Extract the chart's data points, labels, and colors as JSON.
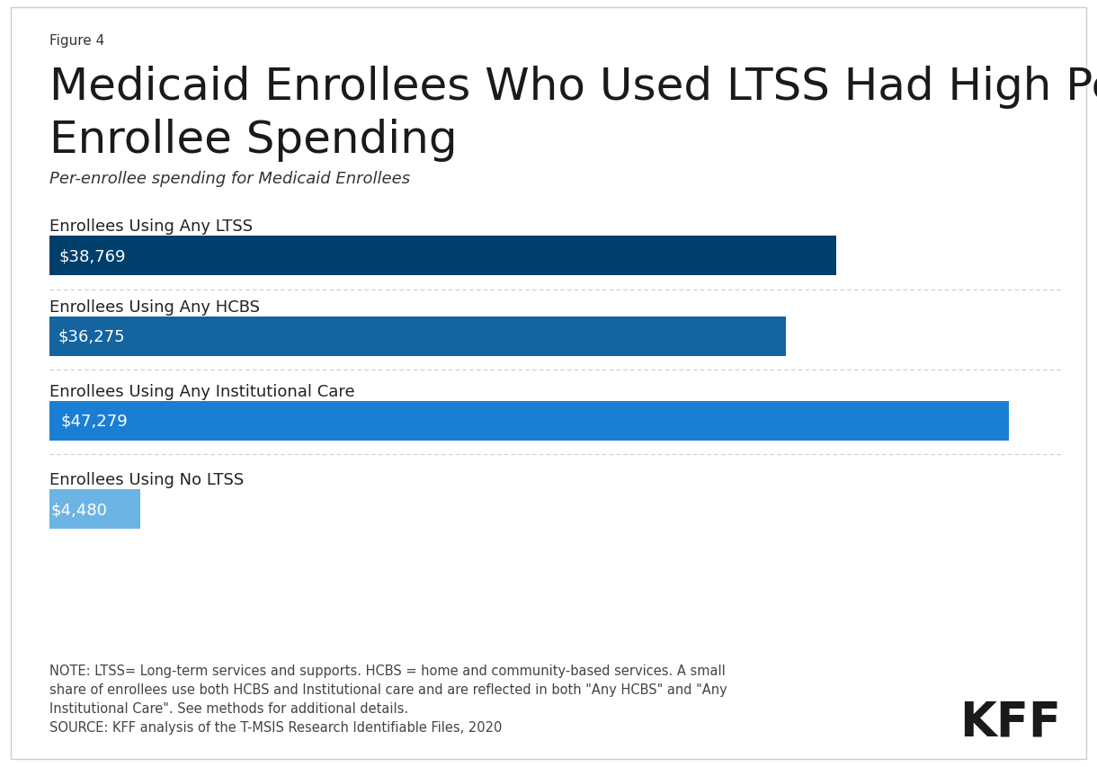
{
  "figure_label": "Figure 4",
  "title_line1": "Medicaid Enrollees Who Used LTSS Had High Per-",
  "title_line2": "Enrollee Spending",
  "subtitle": "Per-enrollee spending for Medicaid Enrollees",
  "categories": [
    "Enrollees Using Any LTSS",
    "Enrollees Using Any HCBS",
    "Enrollees Using Any Institutional Care",
    "Enrollees Using No LTSS"
  ],
  "values": [
    38769,
    36275,
    47279,
    4480
  ],
  "labels": [
    "$38,769",
    "$36,275",
    "$47,279",
    "$4,480"
  ],
  "bar_colors": [
    "#003f6b",
    "#1464a0",
    "#1a7fd4",
    "#6cb4e4"
  ],
  "max_value": 50000,
  "note_text": "NOTE: LTSS= Long-term services and supports. HCBS = home and community-based services. A small\nshare of enrollees use both HCBS and Institutional care and are reflected in both \"Any HCBS\" and \"Any\nInstitutional Care\". See methods for additional details.\nSOURCE: KFF analysis of the T-MSIS Research Identifiable Files, 2020",
  "kff_logo": "KFF",
  "figure_label_fontsize": 11,
  "title_fontsize": 36,
  "subtitle_fontsize": 13,
  "category_fontsize": 13,
  "label_fontsize": 13,
  "note_fontsize": 10.5
}
